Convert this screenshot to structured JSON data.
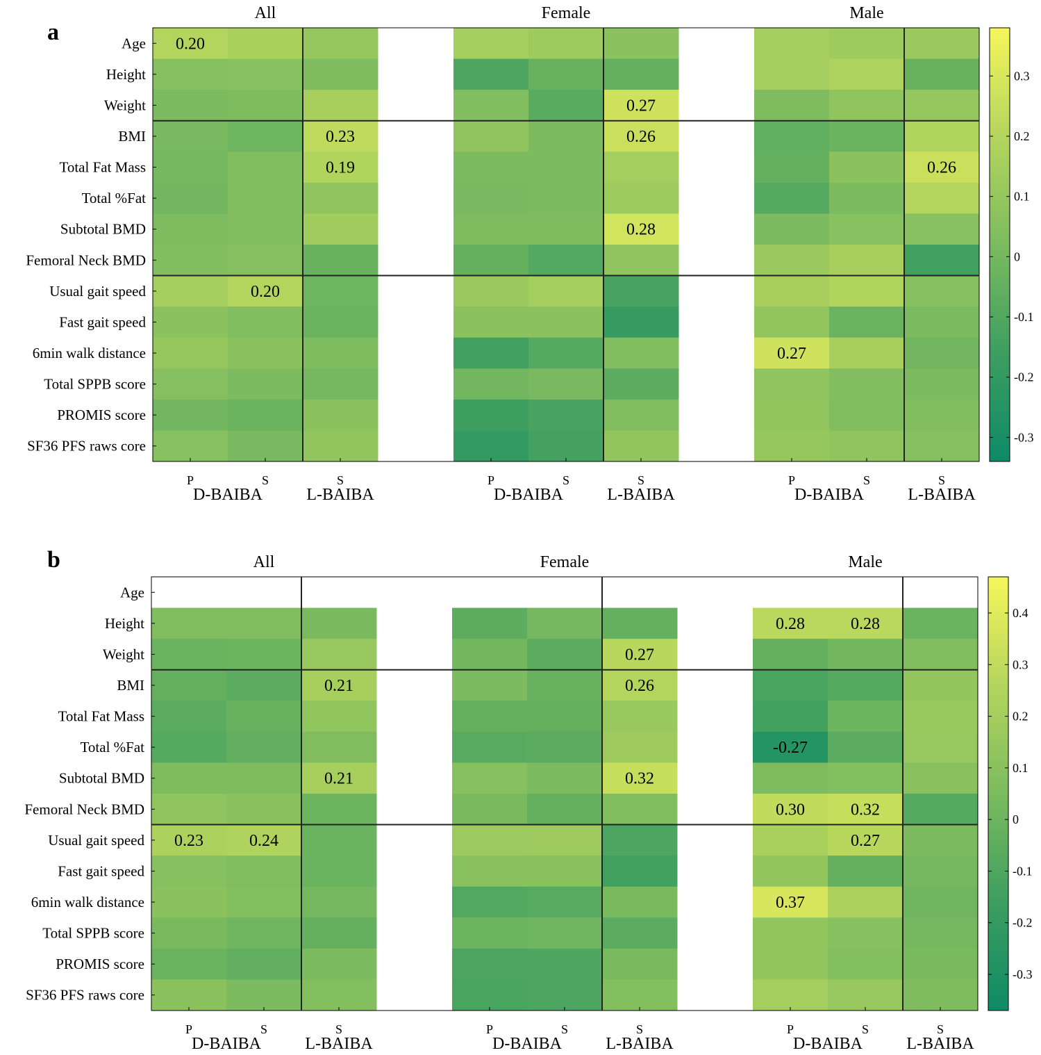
{
  "chart_data": [
    {
      "type": "heatmap",
      "panel": "a",
      "groups": [
        "All",
        "Female",
        "Male"
      ],
      "rows": [
        "Age",
        "Height",
        "Weight",
        "BMI",
        "Total Fat Mass",
        "Total %Fat",
        "Subtotal BMD",
        "Femoral Neck BMD",
        "Usual gait speed",
        "Fast gait speed",
        "6min walk distance",
        "Total SPPB score",
        "PROMIS score",
        "SF36 PFS raws core"
      ],
      "columns": [
        {
          "sub": "P",
          "main": "D-BAIBA"
        },
        {
          "sub": "S",
          "main": ""
        },
        {
          "sub": "S",
          "main": "L-BAIBA"
        }
      ],
      "main_labels": [
        "D-BAIBA",
        "L-BAIBA"
      ],
      "color_range": [
        -0.34,
        0.38
      ],
      "colorbar_ticks": [
        0.3,
        0.2,
        0.1,
        0,
        -0.1,
        -0.2,
        -0.3
      ],
      "values": {
        "All": [
          [
            0.2,
            0.17,
            0.1
          ],
          [
            0.05,
            0.06,
            0.03
          ],
          [
            0.02,
            0.03,
            0.16
          ],
          [
            0.01,
            -0.02,
            0.23
          ],
          [
            0.0,
            0.04,
            0.19
          ],
          [
            -0.01,
            0.04,
            0.08
          ],
          [
            0.03,
            0.04,
            0.14
          ],
          [
            0.04,
            0.05,
            -0.04
          ],
          [
            0.15,
            0.2,
            -0.02
          ],
          [
            0.07,
            0.04,
            -0.03
          ],
          [
            0.1,
            0.07,
            0.03
          ],
          [
            0.05,
            0.02,
            0.0
          ],
          [
            -0.01,
            -0.03,
            0.07
          ],
          [
            0.06,
            0.01,
            0.09
          ]
        ],
        "Female": [
          [
            0.15,
            0.13,
            0.07
          ],
          [
            -0.11,
            -0.04,
            -0.05
          ],
          [
            0.04,
            -0.08,
            0.27
          ],
          [
            0.08,
            0.02,
            0.26
          ],
          [
            0.02,
            0.02,
            0.15
          ],
          [
            0.01,
            0.02,
            0.13
          ],
          [
            0.03,
            0.03,
            0.28
          ],
          [
            -0.05,
            -0.1,
            0.08
          ],
          [
            0.12,
            0.15,
            -0.13
          ],
          [
            0.07,
            0.07,
            -0.19
          ],
          [
            -0.15,
            -0.09,
            0.04
          ],
          [
            -0.01,
            0.01,
            -0.07
          ],
          [
            -0.16,
            -0.13,
            0.04
          ],
          [
            -0.2,
            -0.14,
            0.09
          ]
        ],
        "Male": [
          [
            0.15,
            0.13,
            0.12
          ],
          [
            0.15,
            0.18,
            -0.04
          ],
          [
            0.03,
            0.08,
            0.1
          ],
          [
            -0.06,
            -0.03,
            0.19
          ],
          [
            -0.05,
            0.07,
            0.26
          ],
          [
            -0.09,
            0.02,
            0.2
          ],
          [
            0.02,
            0.06,
            0.06
          ],
          [
            0.12,
            0.16,
            -0.15
          ],
          [
            0.16,
            0.19,
            0.05
          ],
          [
            0.09,
            -0.03,
            0.02
          ],
          [
            0.27,
            0.16,
            -0.01
          ],
          [
            0.08,
            0.04,
            0.02
          ],
          [
            0.09,
            0.04,
            0.04
          ],
          [
            0.1,
            0.08,
            0.05
          ]
        ]
      },
      "labels": {
        "All": [
          [
            "0.20",
            "",
            ""
          ],
          [
            "",
            "",
            ""
          ],
          [
            "",
            "",
            ""
          ],
          [
            "",
            "",
            "0.23"
          ],
          [
            "",
            "",
            "0.19"
          ],
          [
            "",
            "",
            ""
          ],
          [
            "",
            "",
            ""
          ],
          [
            "",
            "",
            ""
          ],
          [
            "",
            "0.20",
            ""
          ],
          [
            "",
            "",
            ""
          ],
          [
            "",
            "",
            ""
          ],
          [
            "",
            "",
            ""
          ],
          [
            "",
            "",
            ""
          ],
          [
            "",
            "",
            ""
          ]
        ],
        "Female": [
          [
            "",
            "",
            ""
          ],
          [
            "",
            "",
            ""
          ],
          [
            "",
            "",
            "0.27"
          ],
          [
            "",
            "",
            "0.26"
          ],
          [
            "",
            "",
            ""
          ],
          [
            "",
            "",
            ""
          ],
          [
            "",
            "",
            "0.28"
          ],
          [
            "",
            "",
            ""
          ],
          [
            "",
            "",
            ""
          ],
          [
            "",
            "",
            ""
          ],
          [
            "",
            "",
            ""
          ],
          [
            "",
            "",
            ""
          ],
          [
            "",
            "",
            ""
          ],
          [
            "",
            "",
            ""
          ]
        ],
        "Male": [
          [
            "",
            "",
            ""
          ],
          [
            "",
            "",
            ""
          ],
          [
            "",
            "",
            ""
          ],
          [
            "",
            "",
            ""
          ],
          [
            "",
            "",
            "0.26"
          ],
          [
            "",
            "",
            ""
          ],
          [
            "",
            "",
            ""
          ],
          [
            "",
            "",
            ""
          ],
          [
            "",
            "",
            ""
          ],
          [
            "",
            "",
            ""
          ],
          [
            "0.27",
            "",
            ""
          ],
          [
            "",
            "",
            ""
          ],
          [
            "",
            "",
            ""
          ],
          [
            "",
            "",
            ""
          ]
        ]
      }
    },
    {
      "type": "heatmap",
      "panel": "b",
      "groups": [
        "All",
        "Female",
        "Male"
      ],
      "rows": [
        "Age",
        "Height",
        "Weight",
        "BMI",
        "Total Fat Mass",
        "Total %Fat",
        "Subtotal BMD",
        "Femoral Neck BMD",
        "Usual gait speed",
        "Fast gait speed",
        "6min walk distance",
        "Total SPPB score",
        "PROMIS score",
        "SF36 PFS raws core"
      ],
      "columns": [
        {
          "sub": "P",
          "main": "D-BAIBA"
        },
        {
          "sub": "S",
          "main": ""
        },
        {
          "sub": "S",
          "main": "L-BAIBA"
        }
      ],
      "main_labels": [
        "D-BAIBA",
        "L-BAIBA"
      ],
      "color_range": [
        -0.37,
        0.47
      ],
      "colorbar_ticks": [
        0.4,
        0.3,
        0.2,
        0.1,
        0,
        -0.1,
        -0.2,
        -0.3
      ],
      "values": {
        "All": [
          [
            null,
            null,
            null
          ],
          [
            0.07,
            0.07,
            0.04
          ],
          [
            -0.01,
            0.0,
            0.15
          ],
          [
            -0.03,
            -0.06,
            0.21
          ],
          [
            -0.06,
            -0.02,
            0.13
          ],
          [
            -0.08,
            -0.04,
            0.07
          ],
          [
            0.06,
            0.06,
            0.21
          ],
          [
            0.12,
            0.1,
            0.0
          ],
          [
            0.23,
            0.24,
            -0.01
          ],
          [
            0.09,
            0.07,
            -0.01
          ],
          [
            0.11,
            0.08,
            0.03
          ],
          [
            0.04,
            0.01,
            -0.03
          ],
          [
            -0.01,
            -0.04,
            0.05
          ],
          [
            0.11,
            0.05,
            0.08
          ]
        ],
        "Female": [
          [
            null,
            null,
            null
          ],
          [
            -0.05,
            0.03,
            -0.03
          ],
          [
            0.02,
            -0.06,
            0.27
          ],
          [
            0.05,
            -0.02,
            0.26
          ],
          [
            -0.03,
            -0.03,
            0.16
          ],
          [
            -0.07,
            -0.06,
            0.18
          ],
          [
            0.09,
            0.05,
            0.32
          ],
          [
            0.04,
            -0.03,
            0.07
          ],
          [
            0.17,
            0.18,
            -0.11
          ],
          [
            0.1,
            0.1,
            -0.14
          ],
          [
            -0.09,
            -0.07,
            0.04
          ],
          [
            0.0,
            0.01,
            -0.06
          ],
          [
            -0.11,
            -0.1,
            0.04
          ],
          [
            -0.12,
            -0.11,
            0.08
          ]
        ],
        "Male": [
          [
            null,
            null,
            null
          ],
          [
            0.28,
            0.28,
            -0.01
          ],
          [
            -0.03,
            0.02,
            0.07
          ],
          [
            -0.12,
            -0.08,
            0.14
          ],
          [
            -0.14,
            0.0,
            0.16
          ],
          [
            -0.27,
            -0.06,
            0.15
          ],
          [
            0.06,
            0.08,
            0.1
          ],
          [
            0.3,
            0.32,
            -0.08
          ],
          [
            0.22,
            0.27,
            0.05
          ],
          [
            0.14,
            -0.03,
            0.03
          ],
          [
            0.37,
            0.23,
            0.01
          ],
          [
            0.13,
            0.09,
            0.03
          ],
          [
            0.13,
            0.08,
            0.04
          ],
          [
            0.2,
            0.15,
            0.06
          ]
        ]
      },
      "labels": {
        "All": [
          [
            "",
            "",
            ""
          ],
          [
            "",
            "",
            ""
          ],
          [
            "",
            "",
            ""
          ],
          [
            "",
            "",
            "0.21"
          ],
          [
            "",
            "",
            ""
          ],
          [
            "",
            "",
            ""
          ],
          [
            "",
            "",
            "0.21"
          ],
          [
            "",
            "",
            ""
          ],
          [
            "0.23",
            "0.24",
            ""
          ],
          [
            "",
            "",
            ""
          ],
          [
            "",
            "",
            ""
          ],
          [
            "",
            "",
            ""
          ],
          [
            "",
            "",
            ""
          ],
          [
            "",
            "",
            ""
          ]
        ],
        "Female": [
          [
            "",
            "",
            ""
          ],
          [
            "",
            "",
            ""
          ],
          [
            "",
            "",
            "0.27"
          ],
          [
            "",
            "",
            "0.26"
          ],
          [
            "",
            "",
            ""
          ],
          [
            "",
            "",
            ""
          ],
          [
            "",
            "",
            "0.32"
          ],
          [
            "",
            "",
            ""
          ],
          [
            "",
            "",
            ""
          ],
          [
            "",
            "",
            ""
          ],
          [
            "",
            "",
            ""
          ],
          [
            "",
            "",
            ""
          ],
          [
            "",
            "",
            ""
          ],
          [
            "",
            "",
            ""
          ]
        ],
        "Male": [
          [
            "",
            "",
            ""
          ],
          [
            "0.28",
            "0.28",
            ""
          ],
          [
            "",
            "",
            ""
          ],
          [
            "",
            "",
            ""
          ],
          [
            "",
            "",
            ""
          ],
          [
            "-0.27",
            "",
            ""
          ],
          [
            "",
            "",
            ""
          ],
          [
            "0.30",
            "0.32",
            ""
          ],
          [
            "",
            "0.27",
            ""
          ],
          [
            "",
            "",
            ""
          ],
          [
            "0.37",
            "",
            ""
          ],
          [
            "",
            "",
            ""
          ],
          [
            "",
            "",
            ""
          ],
          [
            "",
            "",
            ""
          ]
        ]
      }
    }
  ]
}
